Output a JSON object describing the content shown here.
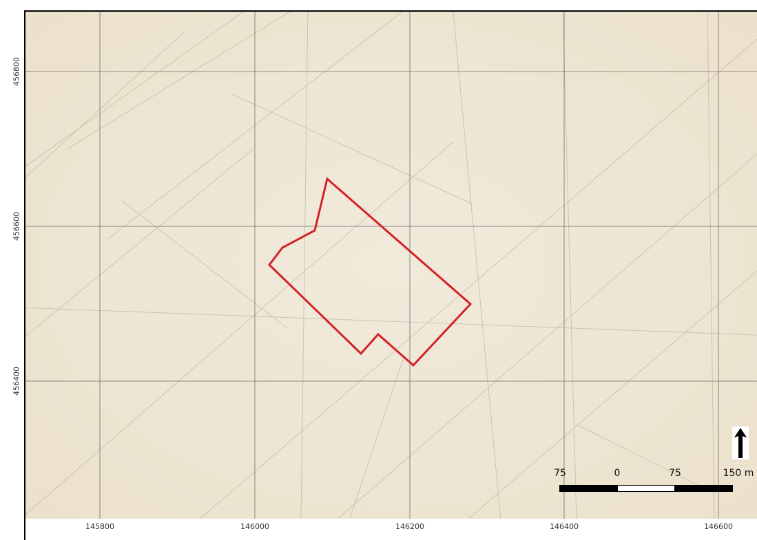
{
  "map": {
    "grid_easting_labels": [
      "145800",
      "146000",
      "146200",
      "146400",
      "146600"
    ],
    "grid_northing_labels": [
      "456800",
      "456600",
      "456400"
    ],
    "boundary_color": "#d42127",
    "background_color": "#efe7d6"
  },
  "scalebar": {
    "labels": [
      "75",
      "0",
      "75",
      "150 m"
    ]
  },
  "north_arrow": {
    "icon": "north-arrow-icon"
  }
}
